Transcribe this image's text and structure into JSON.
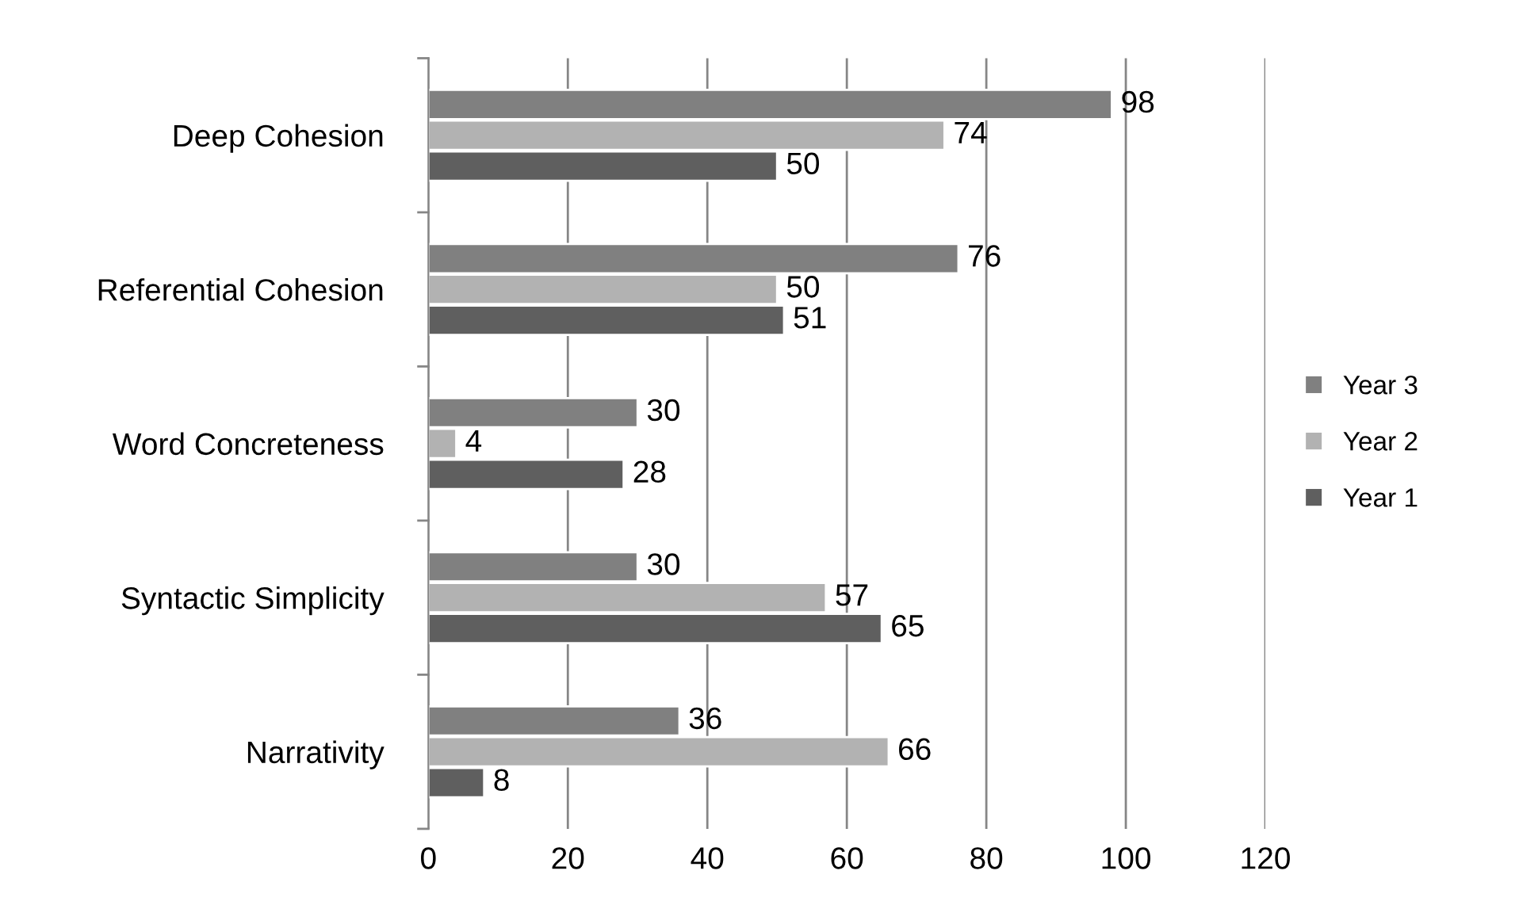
{
  "chart_data": {
    "type": "bar",
    "orientation": "horizontal",
    "categories": [
      "Deep Cohesion",
      "Referential Cohesion",
      "Word Concreteness",
      "Syntactic Simplicity",
      "Narrativity"
    ],
    "series": [
      {
        "name": "Year 3",
        "color": "#808080",
        "values": [
          98,
          76,
          30,
          30,
          36
        ]
      },
      {
        "name": "Year 2",
        "color": "#b2b2b2",
        "values": [
          74,
          50,
          4,
          57,
          66
        ]
      },
      {
        "name": "Year 1",
        "color": "#5f5f5f",
        "values": [
          50,
          51,
          28,
          65,
          8
        ]
      }
    ],
    "xlim": [
      0,
      120
    ],
    "xticks": [
      0,
      20,
      40,
      60,
      80,
      100,
      120
    ],
    "grid": "x",
    "legend": "right",
    "data_labels": true
  }
}
